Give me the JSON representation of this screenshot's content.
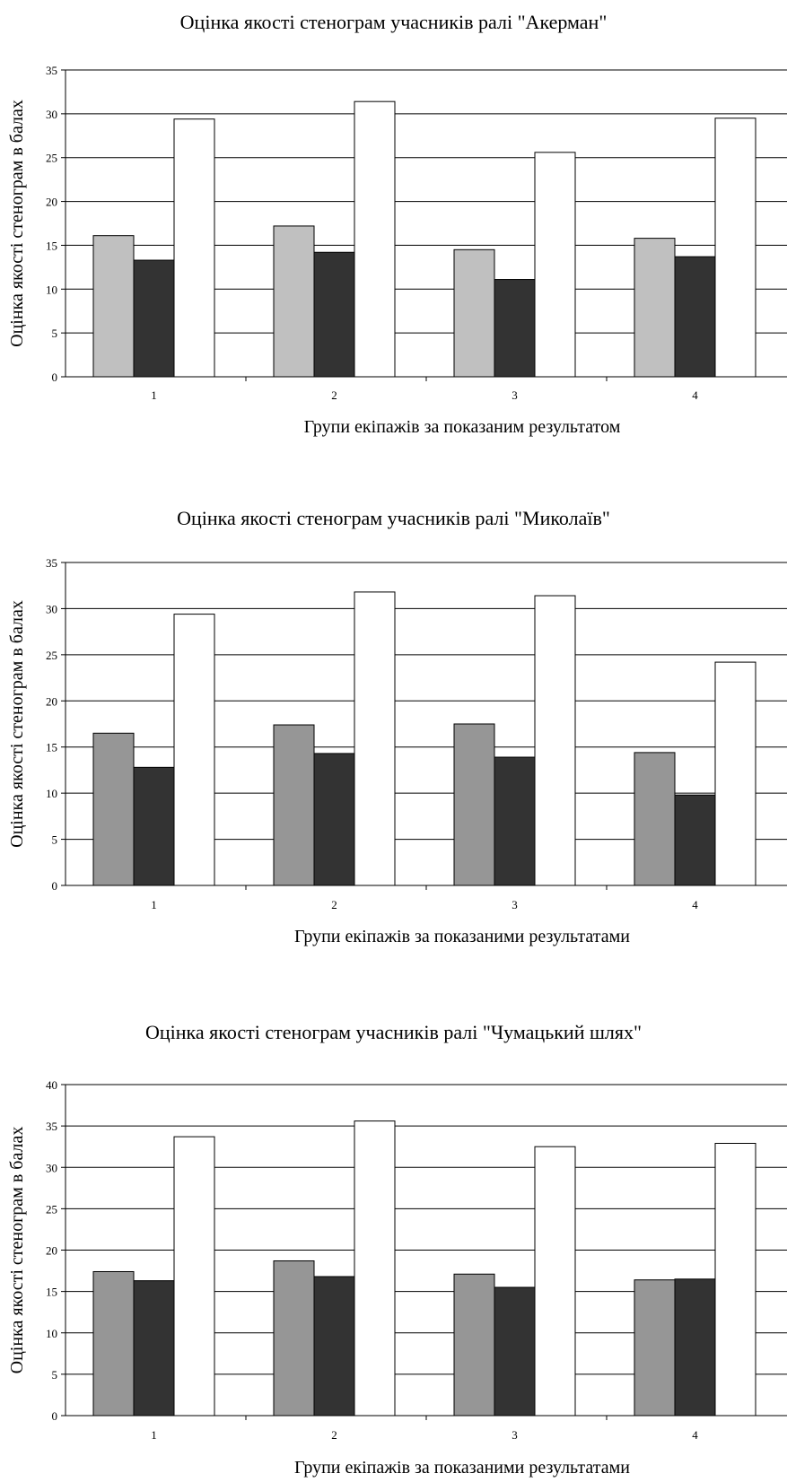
{
  "chart_data": [
    {
      "type": "bar",
      "title": "Оцінка якості стенограм учасників ралі \"Акерман\"",
      "xlabel": "Групи екіпажів за показаним результатом",
      "ylabel": "Оцінка якості стенограм в балах",
      "categories": [
        "1",
        "2",
        "3",
        "4"
      ],
      "ylim": [
        0,
        35
      ],
      "yticks": [
        "0",
        "5",
        "10",
        "15",
        "20",
        "25",
        "30",
        "35"
      ],
      "grid": true,
      "legend": "none",
      "colors": [
        "#c0c0c0",
        "#333333",
        "#ffffff"
      ],
      "series": [
        {
          "values": [
            16.1,
            17.2,
            14.5,
            15.8
          ]
        },
        {
          "values": [
            13.3,
            14.2,
            11.1,
            13.7
          ]
        },
        {
          "values": [
            29.4,
            31.4,
            25.6,
            29.5
          ]
        }
      ]
    },
    {
      "type": "bar",
      "title": "Оцінка якості стенограм учасників ралі \"Миколаїв\"",
      "xlabel": "Групи екіпажів за показаними результатами",
      "ylabel": "Оцінка якості стенограм в балах",
      "categories": [
        "1",
        "2",
        "3",
        "4"
      ],
      "ylim": [
        0,
        35
      ],
      "yticks": [
        "0",
        "5",
        "10",
        "15",
        "20",
        "25",
        "30",
        "35"
      ],
      "grid": true,
      "legend": "none",
      "colors": [
        "#969696",
        "#333333",
        "#ffffff"
      ],
      "series": [
        {
          "values": [
            16.5,
            17.4,
            17.5,
            14.4
          ]
        },
        {
          "values": [
            12.8,
            14.3,
            13.9,
            9.8
          ]
        },
        {
          "values": [
            29.4,
            31.8,
            31.4,
            24.2
          ]
        }
      ]
    },
    {
      "type": "bar",
      "title": "Оцінка якості стенограм учасників ралі \"Чумацький шлях\"",
      "xlabel": "Групи екіпажів за показаними результатами",
      "ylabel": "Оцінка якості стенограм в балах",
      "categories": [
        "1",
        "2",
        "3",
        "4"
      ],
      "ylim": [
        0,
        40
      ],
      "yticks": [
        "0",
        "5",
        "10",
        "15",
        "20",
        "25",
        "30",
        "35",
        "40"
      ],
      "grid": true,
      "legend": "none",
      "colors": [
        "#969696",
        "#333333",
        "#ffffff"
      ],
      "series": [
        {
          "values": [
            17.4,
            18.7,
            17.1,
            16.4
          ]
        },
        {
          "values": [
            16.3,
            16.8,
            15.5,
            16.5
          ]
        },
        {
          "values": [
            33.7,
            35.6,
            32.5,
            32.9
          ]
        }
      ]
    }
  ]
}
